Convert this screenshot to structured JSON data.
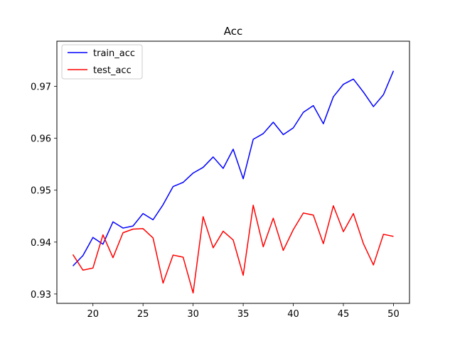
{
  "chart_data": {
    "type": "line",
    "title": "Acc",
    "xlabel": "",
    "ylabel": "",
    "x": [
      18,
      19,
      20,
      21,
      22,
      23,
      24,
      25,
      26,
      27,
      28,
      29,
      30,
      31,
      32,
      33,
      34,
      35,
      36,
      37,
      38,
      39,
      40,
      41,
      42,
      43,
      44,
      45,
      46,
      47,
      48,
      49,
      50
    ],
    "xlim": [
      16.4,
      51.6
    ],
    "ylim": [
      0.9282,
      0.9787
    ],
    "xticks": [
      20,
      25,
      30,
      35,
      40,
      45,
      50
    ],
    "xtick_labels": [
      "20",
      "25",
      "30",
      "35",
      "40",
      "45",
      "50"
    ],
    "yticks": [
      0.93,
      0.94,
      0.95,
      0.96,
      0.97
    ],
    "ytick_labels": [
      "0.93",
      "0.94",
      "0.95",
      "0.96",
      "0.97"
    ],
    "grid": false,
    "legend_position": "top-left",
    "series": [
      {
        "name": "train_acc",
        "color": "#0000ff",
        "values": [
          0.9354,
          0.9374,
          0.9409,
          0.9396,
          0.9439,
          0.9427,
          0.9431,
          0.9455,
          0.9443,
          0.9472,
          0.9507,
          0.9515,
          0.9533,
          0.9544,
          0.9564,
          0.9542,
          0.9579,
          0.9522,
          0.9598,
          0.9609,
          0.9631,
          0.9607,
          0.962,
          0.965,
          0.9663,
          0.9628,
          0.968,
          0.9704,
          0.9714,
          0.9689,
          0.9661,
          0.9684,
          0.973
        ]
      },
      {
        "name": "test_acc",
        "color": "#ff0000",
        "values": [
          0.9376,
          0.9346,
          0.935,
          0.9414,
          0.937,
          0.9418,
          0.9425,
          0.9426,
          0.9408,
          0.9321,
          0.9375,
          0.9371,
          0.9302,
          0.9449,
          0.9389,
          0.9421,
          0.9404,
          0.9336,
          0.9471,
          0.9391,
          0.9446,
          0.9384,
          0.9424,
          0.9456,
          0.9452,
          0.9397,
          0.947,
          0.942,
          0.9455,
          0.9397,
          0.9356,
          0.9415,
          0.9411
        ]
      }
    ]
  }
}
